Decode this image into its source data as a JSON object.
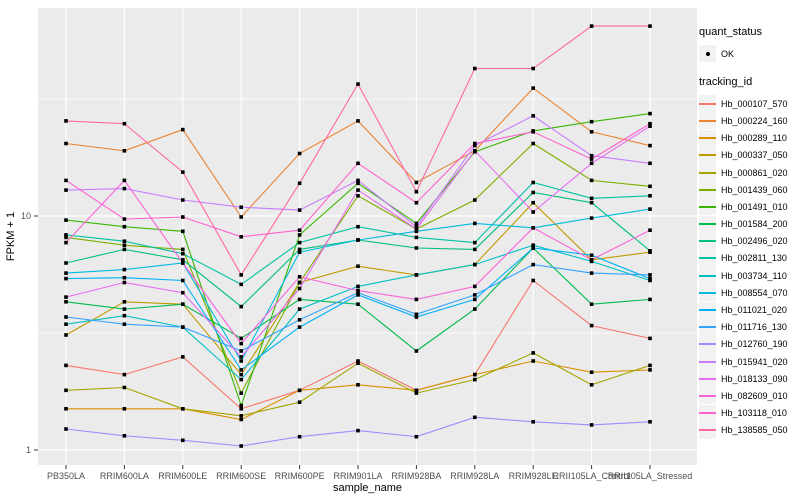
{
  "chart_data": {
    "type": "line",
    "title": "",
    "xlabel": "sample_name",
    "ylabel": "FPKM + 1",
    "y_scale": "log10",
    "ylim": [
      0.95,
      80
    ],
    "grid": "on",
    "legend_position": "right",
    "panel_bg": "#EBEBEB",
    "gridline_color": "#FFFFFF",
    "point_marker": "small-black-square",
    "y_ticks": [
      {
        "value": 1,
        "label": "1"
      },
      {
        "value": 10,
        "label": "10"
      }
    ],
    "y_minor_gridlines": [
      3.162,
      31.62
    ],
    "categories": [
      "PB350LA",
      "RRIM600LA",
      "RRIM600LE",
      "RRIM600SE",
      "RRIM600PE",
      "RRIM901LA",
      "RRIM928BA",
      "RRIM928LA",
      "RRIM928LE",
      "RRII105LA_Control",
      "RRII105LA_Stressed"
    ],
    "series": [
      {
        "tracking_id": "Hb_000107_570",
        "color": "#F8766D",
        "values": [
          2.3,
          2.1,
          2.5,
          1.5,
          1.8,
          2.4,
          1.8,
          2.1,
          5.3,
          3.4,
          3.0
        ]
      },
      {
        "tracking_id": "Hb_000224_160",
        "color": "#EA8331",
        "values": [
          20.4,
          19.0,
          23.4,
          9.9,
          18.5,
          25.5,
          13.9,
          19.0,
          35.2,
          22.9,
          20.0
        ]
      },
      {
        "tracking_id": "Hb_000289_110",
        "color": "#D89000",
        "values": [
          1.5,
          1.5,
          1.5,
          1.35,
          1.8,
          1.9,
          1.8,
          2.1,
          2.4,
          2.15,
          2.2
        ]
      },
      {
        "tracking_id": "Hb_000337_050",
        "color": "#C09B00",
        "values": [
          3.1,
          4.3,
          4.2,
          2.1,
          5.2,
          6.1,
          5.6,
          6.2,
          11.4,
          6.5,
          7.0
        ]
      },
      {
        "tracking_id": "Hb_000861_020",
        "color": "#A3A500",
        "values": [
          1.8,
          1.85,
          1.5,
          1.4,
          1.6,
          2.35,
          1.75,
          2.0,
          2.6,
          1.9,
          2.3
        ]
      },
      {
        "tracking_id": "Hb_001439_060",
        "color": "#7CAE00",
        "values": [
          8.1,
          7.5,
          7.2,
          1.75,
          5.2,
          12.2,
          8.8,
          11.7,
          20.4,
          14.2,
          13.4
        ]
      },
      {
        "tracking_id": "Hb_001491_010",
        "color": "#39B600",
        "values": [
          9.6,
          9.0,
          8.6,
          1.55,
          8.3,
          13.8,
          9.3,
          18.8,
          23.1,
          25.3,
          27.4
        ]
      },
      {
        "tracking_id": "Hb_001584_200",
        "color": "#00BB4E",
        "values": [
          4.3,
          4.0,
          4.2,
          3.0,
          4.4,
          4.2,
          2.65,
          4.0,
          7.3,
          4.2,
          4.4
        ]
      },
      {
        "tracking_id": "Hb_002496_020",
        "color": "#00BF7D",
        "values": [
          6.3,
          7.2,
          6.5,
          4.1,
          7.2,
          7.9,
          7.3,
          7.2,
          12.6,
          11.4,
          7.1
        ]
      },
      {
        "tracking_id": "Hb_002811_130",
        "color": "#00C1A3",
        "values": [
          8.3,
          7.8,
          6.9,
          5.1,
          7.7,
          9.0,
          8.1,
          7.7,
          13.9,
          11.9,
          12.2
        ]
      },
      {
        "tracking_id": "Hb_003734_110",
        "color": "#00BFC4",
        "values": [
          3.45,
          3.75,
          3.35,
          2.0,
          4.0,
          5.0,
          5.6,
          6.2,
          7.5,
          6.4,
          5.3
        ]
      },
      {
        "tracking_id": "Hb_008554_070",
        "color": "#00BAE0",
        "values": [
          5.7,
          5.9,
          6.3,
          2.4,
          7.0,
          7.9,
          8.6,
          9.3,
          8.9,
          9.8,
          10.7
        ]
      },
      {
        "tracking_id": "Hb_011021_020",
        "color": "#00B0F6",
        "values": [
          5.4,
          5.45,
          5.3,
          2.2,
          3.35,
          4.6,
          3.7,
          4.4,
          7.3,
          6.8,
          5.4
        ]
      },
      {
        "tracking_id": "Hb_011716_130",
        "color": "#35A2FF",
        "values": [
          3.7,
          3.45,
          3.35,
          2.65,
          3.6,
          4.7,
          3.8,
          4.6,
          6.2,
          5.7,
          5.6
        ]
      },
      {
        "tracking_id": "Hb_012760_190",
        "color": "#9590FF",
        "values": [
          1.23,
          1.15,
          1.1,
          1.04,
          1.14,
          1.21,
          1.14,
          1.38,
          1.32,
          1.28,
          1.32
        ]
      },
      {
        "tracking_id": "Hb_015941_020",
        "color": "#C77CFF",
        "values": [
          12.9,
          13.1,
          11.7,
          10.9,
          10.6,
          14.2,
          9.0,
          20.0,
          26.8,
          18.1,
          16.8
        ]
      },
      {
        "tracking_id": "Hb_018133_090",
        "color": "#E76BF3",
        "values": [
          4.5,
          5.2,
          4.7,
          2.5,
          4.9,
          12.9,
          8.8,
          19.0,
          10.4,
          16.8,
          24.2
        ]
      },
      {
        "tracking_id": "Hb_082609_010",
        "color": "#FA62DB",
        "values": [
          7.7,
          14.2,
          6.3,
          2.85,
          5.5,
          4.8,
          4.4,
          5.0,
          8.9,
          6.5,
          8.7
        ]
      },
      {
        "tracking_id": "Hb_103118_010",
        "color": "#FF61CC",
        "values": [
          14.2,
          9.7,
          9.9,
          8.15,
          8.7,
          16.8,
          11.4,
          20.4,
          22.9,
          17.5,
          24.8
        ]
      },
      {
        "tracking_id": "Hb_138585_050",
        "color": "#FF67A4",
        "values": [
          25.5,
          24.8,
          15.4,
          5.6,
          13.8,
          36.6,
          12.7,
          42.7,
          42.7,
          64.8,
          64.8
        ]
      }
    ]
  },
  "legend": {
    "quant_status": {
      "title": "quant_status",
      "items": [
        {
          "label": "OK",
          "marker": "black-point"
        }
      ]
    },
    "tracking_id": {
      "title": "tracking_id"
    }
  }
}
